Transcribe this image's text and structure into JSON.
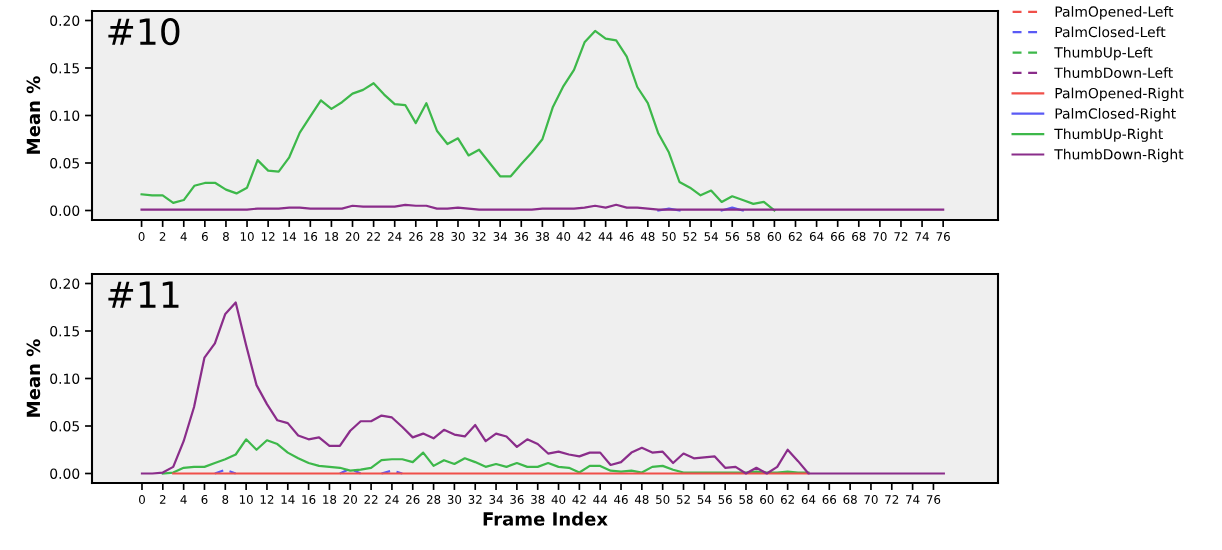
{
  "chart_data": [
    {
      "type": "line",
      "annotations": [
        "#10"
      ],
      "ylabel": "Mean %",
      "legend": "right",
      "grid": false,
      "marker": "none",
      "xlim": [
        -4.7,
        81.2
      ],
      "ylim": [
        -0.01,
        0.21
      ],
      "xticks": [
        0,
        2,
        4,
        6,
        8,
        10,
        12,
        14,
        16,
        18,
        20,
        22,
        24,
        26,
        28,
        30,
        32,
        34,
        36,
        38,
        40,
        42,
        44,
        46,
        48,
        50,
        52,
        54,
        56,
        58,
        60,
        62,
        64,
        66,
        68,
        70,
        72,
        74,
        76
      ],
      "yticks": [
        {
          "value": 0,
          "label": "0.00"
        },
        {
          "value": 0.05,
          "label": "0.05"
        },
        {
          "value": 0.1,
          "label": "0.10"
        },
        {
          "value": 0.15,
          "label": "0.15"
        },
        {
          "value": 0.2,
          "label": "0.20"
        }
      ],
      "x": [
        0,
        1,
        2,
        3,
        4,
        5,
        6,
        7,
        8,
        9,
        10,
        11,
        12,
        13,
        14,
        15,
        16,
        17,
        18,
        19,
        20,
        21,
        22,
        23,
        24,
        25,
        26,
        27,
        28,
        29,
        30,
        31,
        32,
        33,
        34,
        35,
        36,
        37,
        38,
        39,
        40,
        41,
        42,
        43,
        44,
        45,
        46,
        47,
        48,
        49,
        50,
        51,
        52,
        53,
        54,
        55,
        56,
        57,
        58,
        59,
        60,
        61,
        62,
        63,
        64,
        65,
        66,
        67,
        68,
        69,
        70,
        71,
        72,
        73,
        74,
        75,
        76
      ],
      "series": [
        {
          "name": "PalmOpened-Left",
          "color": "#f0504a",
          "line_style": "dashed",
          "values": [
            null,
            null,
            null,
            null,
            null,
            null,
            null,
            null,
            null,
            null,
            null,
            null,
            null,
            null,
            null,
            null,
            null,
            null,
            null,
            null,
            null,
            null,
            null,
            null,
            null,
            null,
            null,
            null,
            null,
            null,
            null,
            null,
            null,
            null,
            null,
            null,
            null,
            null,
            null,
            null,
            null,
            null,
            null,
            null,
            null,
            null,
            null,
            null,
            null,
            null,
            null,
            null,
            null,
            null,
            null,
            null,
            null,
            null,
            null,
            null,
            null,
            null,
            null,
            null,
            null,
            null,
            null,
            null,
            null,
            null,
            null,
            null,
            null,
            null,
            null,
            null,
            null
          ]
        },
        {
          "name": "PalmClosed-Left",
          "color": "#5a5af5",
          "line_style": "dashed",
          "values": [
            null,
            null,
            null,
            null,
            null,
            null,
            null,
            null,
            null,
            null,
            null,
            null,
            null,
            null,
            null,
            null,
            null,
            null,
            null,
            null,
            null,
            null,
            null,
            null,
            null,
            null,
            null,
            null,
            null,
            null,
            null,
            null,
            null,
            null,
            null,
            null,
            null,
            null,
            null,
            null,
            null,
            null,
            null,
            null,
            null,
            null,
            null,
            null,
            null,
            null,
            null,
            null,
            null,
            null,
            null,
            null,
            null,
            null,
            null,
            null,
            null,
            null,
            null,
            null,
            null,
            null,
            null,
            null,
            null,
            null,
            null,
            null,
            null,
            null,
            null,
            null,
            null
          ]
        },
        {
          "name": "ThumbUp-Left",
          "color": "#3db84a",
          "line_style": "dashed",
          "values": [
            null,
            null,
            null,
            null,
            null,
            null,
            null,
            null,
            null,
            null,
            null,
            null,
            null,
            null,
            null,
            null,
            null,
            null,
            null,
            null,
            null,
            null,
            null,
            null,
            null,
            null,
            null,
            null,
            null,
            null,
            null,
            null,
            null,
            null,
            null,
            null,
            null,
            null,
            null,
            null,
            null,
            null,
            null,
            null,
            null,
            null,
            null,
            null,
            null,
            null,
            null,
            null,
            null,
            null,
            null,
            null,
            null,
            null,
            null,
            null,
            null,
            null,
            null,
            null,
            null,
            null,
            null,
            null,
            null,
            null,
            null,
            null,
            null,
            null,
            null,
            null,
            null
          ]
        },
        {
          "name": "ThumbDown-Left",
          "color": "#8a2d8a",
          "line_style": "dashed",
          "values": [
            null,
            null,
            null,
            null,
            null,
            null,
            null,
            null,
            null,
            null,
            null,
            null,
            null,
            null,
            null,
            null,
            null,
            null,
            null,
            null,
            null,
            null,
            null,
            null,
            null,
            null,
            null,
            null,
            null,
            null,
            null,
            null,
            null,
            null,
            null,
            null,
            null,
            null,
            null,
            null,
            null,
            null,
            null,
            null,
            null,
            null,
            null,
            null,
            null,
            null,
            null,
            null,
            null,
            null,
            null,
            null,
            null,
            null,
            null,
            null,
            null,
            null,
            null,
            null,
            null,
            null,
            null,
            null,
            null,
            null,
            null,
            null,
            null,
            null,
            null,
            null,
            null
          ]
        },
        {
          "name": "PalmOpened-Right",
          "color": "#f0504a",
          "line_style": "solid",
          "values": [
            null,
            null,
            null,
            null,
            null,
            null,
            null,
            null,
            null,
            null,
            null,
            null,
            null,
            null,
            null,
            null,
            null,
            null,
            null,
            null,
            null,
            null,
            null,
            null,
            null,
            null,
            null,
            null,
            null,
            null,
            null,
            null,
            null,
            null,
            null,
            null,
            null,
            null,
            null,
            null,
            null,
            null,
            null,
            null,
            null,
            null,
            null,
            null,
            null,
            null,
            null,
            null,
            null,
            null,
            null,
            null,
            null,
            null,
            null,
            null,
            null,
            null,
            null,
            null,
            null,
            null,
            null,
            null,
            null,
            null,
            null,
            null,
            null,
            null,
            null,
            null,
            null
          ]
        },
        {
          "name": "PalmClosed-Right",
          "color": "#5a5af5",
          "line_style": "solid",
          "values": [
            null,
            null,
            null,
            null,
            null,
            null,
            null,
            null,
            null,
            null,
            null,
            null,
            null,
            null,
            null,
            null,
            null,
            null,
            null,
            null,
            null,
            null,
            null,
            null,
            null,
            null,
            null,
            null,
            null,
            null,
            null,
            null,
            null,
            null,
            null,
            null,
            null,
            null,
            null,
            null,
            null,
            null,
            null,
            null,
            null,
            null,
            null,
            null,
            null,
            0,
            0.002,
            0,
            null,
            null,
            null,
            0,
            0.003,
            0,
            null,
            null,
            null,
            null,
            null,
            null,
            null,
            null,
            null,
            null,
            null,
            null,
            null,
            null,
            null,
            null,
            null,
            null,
            null
          ]
        },
        {
          "name": "ThumbUp-Right",
          "color": "#3db84a",
          "line_style": "solid",
          "values": [
            0.017,
            0.016,
            0.016,
            0.008,
            0.011,
            0.026,
            0.029,
            0.029,
            0.022,
            0.018,
            0.024,
            0.053,
            0.042,
            0.041,
            0.056,
            0.082,
            0.099,
            0.116,
            0.107,
            0.114,
            0.123,
            0.127,
            0.134,
            0.122,
            0.112,
            0.111,
            0.092,
            0.113,
            0.084,
            0.07,
            0.076,
            0.058,
            0.064,
            0.05,
            0.036,
            0.036,
            0.049,
            0.061,
            0.075,
            0.109,
            0.131,
            0.148,
            0.177,
            0.189,
            0.181,
            0.179,
            0.162,
            0.13,
            0.113,
            0.081,
            0.061,
            0.03,
            0.024,
            0.016,
            0.021,
            0.009,
            0.015,
            0.011,
            0.007,
            0.009,
            0,
            null,
            null,
            null,
            null,
            null,
            null,
            null,
            null,
            null,
            null,
            null,
            null,
            null,
            null,
            null,
            null
          ]
        },
        {
          "name": "ThumbDown-Right",
          "color": "#8a2d8a",
          "line_style": "solid",
          "values": [
            0.001,
            0.001,
            0.001,
            0.001,
            0.001,
            0.001,
            0.001,
            0.001,
            0.001,
            0.001,
            0.001,
            0.002,
            0.002,
            0.002,
            0.003,
            0.003,
            0.002,
            0.002,
            0.002,
            0.002,
            0.005,
            0.004,
            0.004,
            0.004,
            0.004,
            0.006,
            0.005,
            0.005,
            0.002,
            0.002,
            0.003,
            0.002,
            0.001,
            0.001,
            0.001,
            0.001,
            0.001,
            0.001,
            0.002,
            0.002,
            0.002,
            0.002,
            0.003,
            0.005,
            0.003,
            0.006,
            0.003,
            0.003,
            0.002,
            0.001,
            0.001,
            0.001,
            0.001,
            0.001,
            0.001,
            0.001,
            0.001,
            0.001,
            0.001,
            0.001,
            0.001,
            0.001,
            0.001,
            0.001,
            0.001,
            0.001,
            0.001,
            0.001,
            0.001,
            0.001,
            0.001,
            0.001,
            0.001,
            0.001,
            0.001,
            0.001,
            0.001
          ]
        }
      ]
    },
    {
      "type": "line",
      "annotations": [
        "#11"
      ],
      "ylabel": "Mean %",
      "xlabel": "Frame Index",
      "grid": false,
      "marker": "none",
      "xlim": [
        -4.8,
        82.2
      ],
      "ylim": [
        -0.01,
        0.21
      ],
      "xticks": [
        0,
        2,
        4,
        6,
        8,
        10,
        12,
        14,
        16,
        18,
        20,
        22,
        24,
        26,
        28,
        30,
        32,
        34,
        36,
        38,
        40,
        42,
        44,
        46,
        48,
        50,
        52,
        54,
        56,
        58,
        60,
        62,
        64,
        66,
        68,
        70,
        72,
        74,
        76
      ],
      "yticks": [
        {
          "value": 0,
          "label": "0.00"
        },
        {
          "value": 0.05,
          "label": "0.05"
        },
        {
          "value": 0.1,
          "label": "0.10"
        },
        {
          "value": 0.15,
          "label": "0.15"
        },
        {
          "value": 0.2,
          "label": "0.20"
        }
      ],
      "x": [
        0,
        1,
        2,
        3,
        4,
        5,
        6,
        7,
        8,
        9,
        10,
        11,
        12,
        13,
        14,
        15,
        16,
        17,
        18,
        19,
        20,
        21,
        22,
        23,
        24,
        25,
        26,
        27,
        28,
        29,
        30,
        31,
        32,
        33,
        34,
        35,
        36,
        37,
        38,
        39,
        40,
        41,
        42,
        43,
        44,
        45,
        46,
        47,
        48,
        49,
        50,
        51,
        52,
        53,
        54,
        55,
        56,
        57,
        58,
        59,
        60,
        61,
        62,
        63,
        64,
        65,
        66,
        67,
        68,
        69,
        70,
        71,
        72,
        73,
        74,
        75,
        76,
        77
      ],
      "series": [
        {
          "color": "#5a5af5",
          "line_style": "dashed",
          "values": [
            null,
            null,
            null,
            null,
            null,
            null,
            null,
            0,
            0.004,
            0,
            null,
            null,
            null,
            null,
            null,
            null,
            null,
            null,
            null,
            0,
            0.005,
            0,
            null,
            0,
            0.003,
            0,
            null,
            null,
            null,
            null,
            null,
            null,
            null,
            null,
            null,
            null,
            null,
            null,
            null,
            null,
            null,
            null,
            null,
            null,
            null,
            null,
            null,
            null,
            null,
            null,
            null,
            null,
            null,
            null,
            null,
            null,
            null,
            null,
            null,
            null,
            null,
            null,
            null,
            null,
            null,
            null,
            null,
            null,
            null,
            null,
            null,
            null,
            null,
            null,
            null,
            null,
            null,
            null
          ]
        },
        {
          "color": "#3db84a",
          "line_style": "solid",
          "values": [
            null,
            null,
            0,
            0.001,
            0.006,
            0.007,
            0.007,
            0.011,
            0.015,
            0.02,
            0.036,
            0.025,
            0.035,
            0.031,
            0.022,
            0.016,
            0.011,
            0.008,
            0.007,
            0.006,
            0.003,
            0.004,
            0.006,
            0.014,
            0.015,
            0.015,
            0.012,
            0.022,
            0.008,
            0.014,
            0.01,
            0.016,
            0.012,
            0.007,
            0.01,
            0.007,
            0.011,
            0.007,
            0.007,
            0.011,
            0.007,
            0.006,
            0.001,
            0.008,
            0.008,
            0.003,
            0.002,
            0.003,
            0.001,
            0.007,
            0.008,
            0.004,
            0.001,
            0.001,
            0.001,
            0.001,
            0.001,
            0.001,
            0.001,
            0.002,
            0.001,
            0.001,
            0.002,
            0.001,
            0.001,
            null,
            null,
            null,
            null,
            null,
            null,
            null,
            null,
            null,
            null,
            null,
            null,
            null
          ]
        },
        {
          "color": "#f0504a",
          "line_style": "solid",
          "values": [
            null,
            null,
            null,
            0,
            0,
            0,
            0,
            0,
            0,
            0,
            0,
            0,
            0,
            0,
            0,
            0,
            0,
            0,
            0,
            0,
            0,
            0,
            0,
            0,
            0,
            0,
            0,
            0,
            0,
            0,
            0,
            0,
            0,
            0,
            0,
            0,
            0,
            0,
            0,
            0,
            0,
            0,
            0,
            0,
            0,
            0,
            0,
            0,
            0,
            0,
            0,
            0,
            0,
            0,
            0,
            0,
            0,
            0,
            0,
            0,
            0,
            0,
            0,
            0,
            0,
            null,
            null,
            null,
            null,
            null,
            null,
            null,
            null,
            null,
            null,
            null,
            null,
            null
          ]
        },
        {
          "color": "#8a2d8a",
          "line_style": "solid",
          "values": [
            0,
            0,
            0.001,
            0.007,
            0.034,
            0.07,
            0.122,
            0.137,
            0.168,
            0.18,
            0.135,
            0.093,
            0.073,
            0.056,
            0.053,
            0.04,
            0.036,
            0.038,
            0.029,
            0.029,
            0.045,
            0.055,
            0.055,
            0.061,
            0.059,
            0.049,
            0.038,
            0.042,
            0.037,
            0.046,
            0.041,
            0.039,
            0.051,
            0.034,
            0.042,
            0.039,
            0.028,
            0.036,
            0.031,
            0.021,
            0.023,
            0.02,
            0.018,
            0.022,
            0.022,
            0.009,
            0.012,
            0.022,
            0.027,
            0.022,
            0.023,
            0.011,
            0.021,
            0.016,
            0.017,
            0.018,
            0.006,
            0.007,
            0,
            0.006,
            0,
            0.007,
            0.025,
            0.013,
            0,
            0,
            0,
            0,
            0,
            0,
            0,
            0,
            0,
            0,
            0,
            0,
            0,
            0
          ]
        }
      ]
    }
  ]
}
